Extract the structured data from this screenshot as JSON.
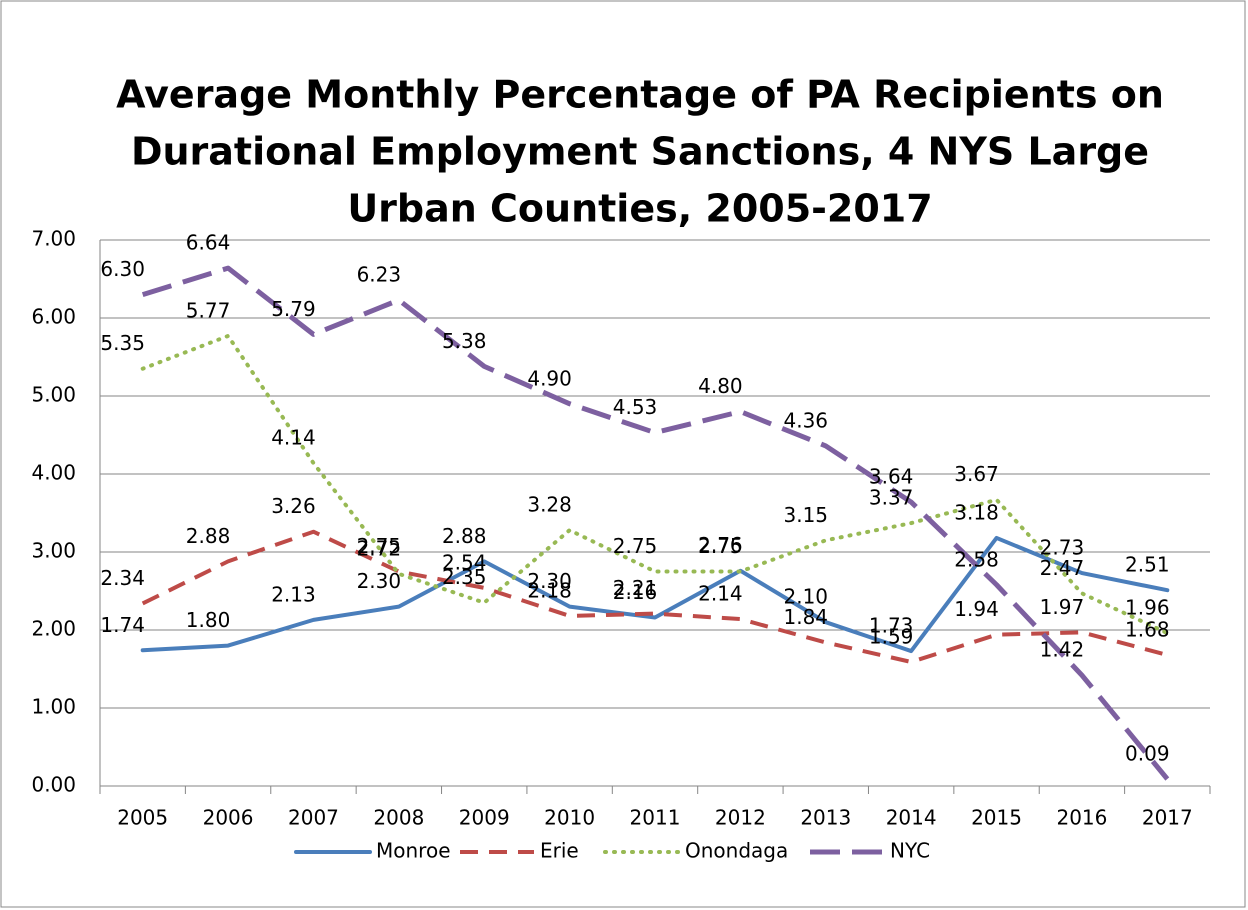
{
  "chart_data": {
    "type": "line",
    "title": "Average Monthly Percentage of PA Recipients on Durational Employment Sanctions, 4 NYS Large Urban Counties, 2005-2017",
    "title_lines": [
      "Average Monthly Percentage of PA Recipients on",
      "Durational Employment Sanctions, 4 NYS Large",
      "Urban Counties, 2005-2017"
    ],
    "categories": [
      "2005",
      "2006",
      "2007",
      "2008",
      "2009",
      "2010",
      "2011",
      "2012",
      "2013",
      "2014",
      "2015",
      "2016",
      "2017"
    ],
    "series": [
      {
        "name": "Monroe",
        "color": "#4a7ebb",
        "values": [
          1.74,
          1.8,
          2.13,
          2.3,
          2.88,
          2.3,
          2.16,
          2.76,
          2.1,
          1.73,
          3.18,
          2.73,
          2.51
        ],
        "value_labels": [
          "1.74",
          "1.80",
          "2.13",
          "2.30",
          "2.88",
          "2.30",
          "2.16",
          "2.76",
          "2.10",
          "1.73",
          "3.18",
          "2.73",
          "2.51"
        ]
      },
      {
        "name": "Erie",
        "color": "#be4b48",
        "values": [
          2.34,
          2.88,
          3.26,
          2.75,
          2.54,
          2.18,
          2.21,
          2.14,
          1.84,
          1.59,
          1.94,
          1.97,
          1.68
        ],
        "value_labels": [
          "2.34",
          "2.88",
          "3.26",
          "2.75",
          "2.54",
          "2.18",
          "2.21",
          "2.14",
          "1.84",
          "1.59",
          "1.94",
          "1.97",
          "1.68"
        ]
      },
      {
        "name": "Onondaga",
        "color": "#98b954",
        "values": [
          5.35,
          5.77,
          4.14,
          2.72,
          2.35,
          3.28,
          2.75,
          2.75,
          3.15,
          3.37,
          3.67,
          2.47,
          1.96
        ],
        "value_labels": [
          "5.35",
          "5.77",
          "4.14",
          "2.72",
          "2.35",
          "3.28",
          "2.75",
          "2.75",
          "3.15",
          "3.37",
          "3.67",
          "2.47",
          "1.96"
        ]
      },
      {
        "name": "NYC",
        "color": "#7d60a0",
        "values": [
          6.3,
          6.64,
          5.79,
          6.23,
          5.38,
          4.9,
          4.53,
          4.8,
          4.36,
          3.64,
          2.58,
          1.42,
          0.09
        ],
        "value_labels": [
          "6.30",
          "6.64",
          "5.79",
          "6.23",
          "5.38",
          "4.90",
          "4.53",
          "4.80",
          "4.36",
          "3.64",
          "2.58",
          "1.42",
          "0.09"
        ]
      }
    ],
    "ylim": [
      0,
      7
    ],
    "yticks": [
      {
        "value": 0,
        "label": "0.00"
      },
      {
        "value": 1,
        "label": "1.00"
      },
      {
        "value": 2,
        "label": "2.00"
      },
      {
        "value": 3,
        "label": "3.00"
      },
      {
        "value": 4,
        "label": "4.00"
      },
      {
        "value": 5,
        "label": "5.00"
      },
      {
        "value": 6,
        "label": "6.00"
      },
      {
        "value": 7,
        "label": "7.00"
      }
    ],
    "grid": true,
    "legend": "bottom"
  }
}
